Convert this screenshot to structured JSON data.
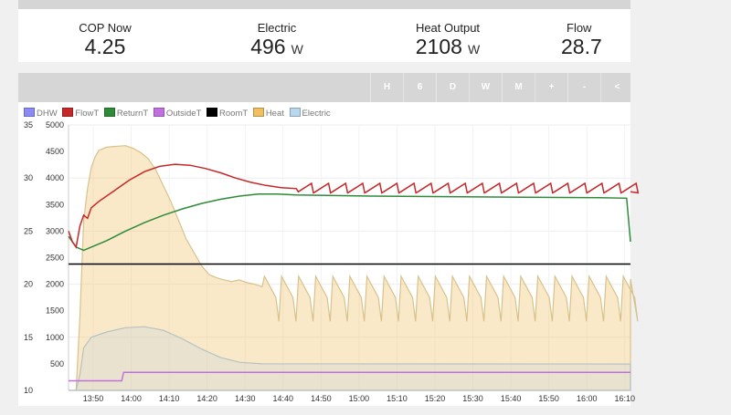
{
  "stats": [
    {
      "label": "COP Now",
      "value": "4.25",
      "unit": ""
    },
    {
      "label": "Electric",
      "value": "496",
      "unit": "W"
    },
    {
      "label": "Heat Output",
      "value": "2108",
      "unit": "W"
    },
    {
      "label": "Flow",
      "value": "28.7",
      "unit": ""
    }
  ],
  "toolbar": {
    "buttons": [
      "H",
      "6",
      "D",
      "W",
      "M",
      "+",
      "-",
      "<"
    ]
  },
  "colors": {
    "DHW": "#8b8bf5",
    "FlowT": "#c62828",
    "ReturnT": "#2e8b3a",
    "OutsideT": "#c070e0",
    "RoomT": "#000000",
    "Heat": "#f0c060",
    "Electric": "#b8d8f0"
  },
  "chart_data": {
    "type": "line",
    "legend": [
      "DHW",
      "FlowT",
      "ReturnT",
      "OutsideT",
      "RoomT",
      "Heat",
      "Electric"
    ],
    "x_ticks": [
      "13:50",
      "14:00",
      "14:10",
      "14:20",
      "14:30",
      "14:40",
      "14:50",
      "15:00",
      "15:10",
      "15:20",
      "15:30",
      "15:40",
      "15:50",
      "16:00",
      "16:10"
    ],
    "y_left_ticks": [
      "10",
      "15",
      "20",
      "25",
      "30",
      "35"
    ],
    "y_right_ticks": [
      "0",
      "500",
      "1000",
      "1500",
      "2000",
      "2500",
      "3000",
      "3500",
      "4000",
      "4500",
      "5000"
    ],
    "y_left_range": [
      10,
      35
    ],
    "y_right_range": [
      0,
      5000
    ],
    "x_range_minutes": [
      0,
      148
    ],
    "x_start_minute_for_tick": 6.5,
    "series": [
      {
        "name": "Heat",
        "axis": "right",
        "x": [
          0,
          2,
          3,
          4,
          5,
          6,
          7,
          8,
          10,
          13,
          15,
          17,
          19,
          21,
          23,
          25,
          27,
          29,
          31,
          33,
          35,
          37,
          39,
          41,
          43,
          45,
          47,
          49,
          51
        ],
        "y": [
          0,
          0,
          1400,
          3200,
          3800,
          4200,
          4400,
          4520,
          4580,
          4600,
          4610,
          4560,
          4480,
          4360,
          4150,
          3850,
          3550,
          3200,
          2850,
          2600,
          2350,
          2180,
          2120,
          2080,
          2050,
          2080,
          2030,
          2000,
          1950
        ]
      },
      {
        "name": "Electric",
        "axis": "right",
        "x": [
          0,
          2,
          3,
          4,
          6,
          10,
          15,
          20,
          25,
          30,
          35,
          40,
          45,
          51,
          148
        ],
        "y": [
          0,
          0,
          300,
          800,
          1000,
          1100,
          1180,
          1200,
          1130,
          970,
          780,
          620,
          530,
          500,
          496
        ]
      },
      {
        "name": "FlowT",
        "axis": "left",
        "x": [
          0,
          1,
          2,
          3,
          4,
          5,
          6,
          8,
          12,
          16,
          20,
          24,
          28,
          32,
          36,
          40,
          44,
          48,
          52,
          56,
          60
        ],
        "y": [
          25,
          24,
          23.5,
          25.5,
          26.5,
          26.2,
          27.2,
          27.8,
          28.8,
          29.8,
          30.6,
          31.1,
          31.3,
          31.2,
          30.9,
          30.5,
          30.0,
          29.6,
          29.3,
          29.1,
          29.0
        ]
      },
      {
        "name": "ReturnT",
        "axis": "left",
        "x": [
          0,
          2,
          4,
          6,
          10,
          15,
          20,
          25,
          30,
          35,
          40,
          45,
          50,
          55,
          60,
          80,
          100,
          120,
          140,
          147,
          148
        ],
        "y": [
          24.5,
          23.5,
          23.2,
          23.5,
          24.1,
          25.0,
          25.8,
          26.5,
          27.1,
          27.6,
          28.0,
          28.3,
          28.5,
          28.5,
          28.4,
          28.3,
          28.25,
          28.2,
          28.15,
          28.1,
          24
        ]
      },
      {
        "name": "RoomT",
        "axis": "left",
        "x": [
          0,
          148
        ],
        "y": [
          21.9,
          21.9
        ]
      },
      {
        "name": "OutsideT",
        "axis": "left",
        "x": [
          0,
          14,
          14.5,
          148
        ],
        "y": [
          10.9,
          10.9,
          11.7,
          11.7
        ]
      }
    ]
  }
}
